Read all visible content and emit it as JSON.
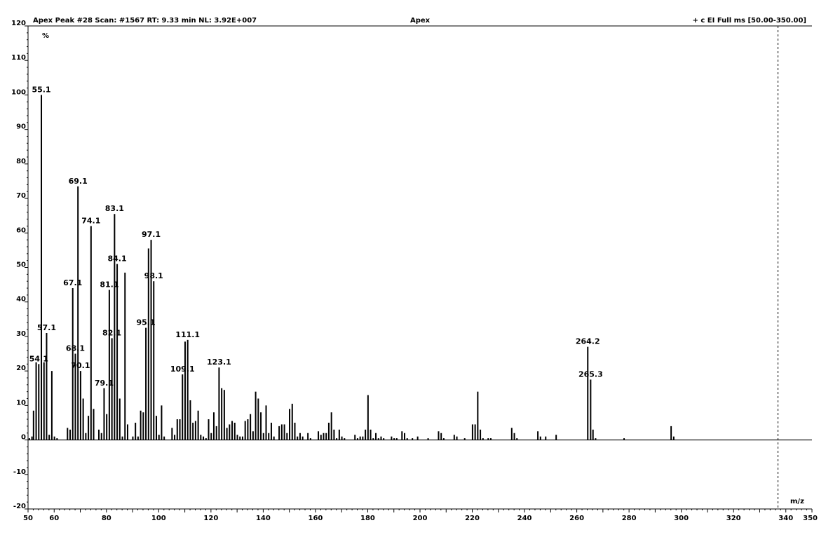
{
  "header": {
    "scan_info": "Apex Peak #28 Scan: #1567 RT: 9.33 min NL: 3.92E+007",
    "center_title": "Apex",
    "filter": "+ c EI Full ms [50.00-350.00]"
  },
  "chart_data": {
    "type": "bar",
    "xlabel": "m/z",
    "ylabel": "%",
    "xlim": [
      50,
      350
    ],
    "ylim": [
      -20,
      120
    ],
    "x_ticks": [
      50,
      60,
      80,
      100,
      120,
      140,
      160,
      180,
      200,
      220,
      240,
      260,
      280,
      300,
      320,
      340,
      350
    ],
    "y_ticks": [
      -20,
      -10,
      0,
      10,
      20,
      30,
      40,
      50,
      60,
      70,
      80,
      90,
      100,
      110,
      120
    ],
    "marker_x": 337,
    "peaks": [
      {
        "mz": 50.5,
        "intensity": 0.5
      },
      {
        "mz": 51.5,
        "intensity": 1
      },
      {
        "mz": 52.1,
        "intensity": 8.5
      },
      {
        "mz": 53.1,
        "intensity": 22.5
      },
      {
        "mz": 54.1,
        "intensity": 22
      },
      {
        "mz": 55.1,
        "intensity": 100
      },
      {
        "mz": 56.1,
        "intensity": 22.5
      },
      {
        "mz": 57.1,
        "intensity": 31
      },
      {
        "mz": 58.1,
        "intensity": 1.5
      },
      {
        "mz": 59.1,
        "intensity": 20
      },
      {
        "mz": 60.1,
        "intensity": 1
      },
      {
        "mz": 61.1,
        "intensity": 0.5
      },
      {
        "mz": 65.1,
        "intensity": 3.5
      },
      {
        "mz": 66.1,
        "intensity": 3
      },
      {
        "mz": 67.1,
        "intensity": 44
      },
      {
        "mz": 68.1,
        "intensity": 25
      },
      {
        "mz": 69.1,
        "intensity": 73.5
      },
      {
        "mz": 70.1,
        "intensity": 20
      },
      {
        "mz": 71.1,
        "intensity": 12
      },
      {
        "mz": 72.1,
        "intensity": 2
      },
      {
        "mz": 73.1,
        "intensity": 7
      },
      {
        "mz": 74.1,
        "intensity": 62
      },
      {
        "mz": 75.1,
        "intensity": 9
      },
      {
        "mz": 77.1,
        "intensity": 3
      },
      {
        "mz": 78.1,
        "intensity": 2
      },
      {
        "mz": 79.1,
        "intensity": 15
      },
      {
        "mz": 80.1,
        "intensity": 7.5
      },
      {
        "mz": 81.1,
        "intensity": 43.5
      },
      {
        "mz": 82.1,
        "intensity": 29.5
      },
      {
        "mz": 83.1,
        "intensity": 65.5
      },
      {
        "mz": 84.1,
        "intensity": 51
      },
      {
        "mz": 85.1,
        "intensity": 12
      },
      {
        "mz": 86.1,
        "intensity": 1
      },
      {
        "mz": 87.1,
        "intensity": 48.5
      },
      {
        "mz": 88.1,
        "intensity": 4.5
      },
      {
        "mz": 90.1,
        "intensity": 1
      },
      {
        "mz": 91.1,
        "intensity": 5
      },
      {
        "mz": 92.1,
        "intensity": 1
      },
      {
        "mz": 93.1,
        "intensity": 8.5
      },
      {
        "mz": 94.1,
        "intensity": 8
      },
      {
        "mz": 95.1,
        "intensity": 32.5
      },
      {
        "mz": 96.1,
        "intensity": 55.5
      },
      {
        "mz": 97.1,
        "intensity": 58
      },
      {
        "mz": 98.1,
        "intensity": 46
      },
      {
        "mz": 99.1,
        "intensity": 7
      },
      {
        "mz": 100.1,
        "intensity": 1.5
      },
      {
        "mz": 101.1,
        "intensity": 10
      },
      {
        "mz": 102.1,
        "intensity": 1
      },
      {
        "mz": 105.1,
        "intensity": 3.5
      },
      {
        "mz": 106.1,
        "intensity": 1.5
      },
      {
        "mz": 107.1,
        "intensity": 6
      },
      {
        "mz": 108.1,
        "intensity": 6
      },
      {
        "mz": 109.1,
        "intensity": 19
      },
      {
        "mz": 110.1,
        "intensity": 28.5
      },
      {
        "mz": 111.1,
        "intensity": 29
      },
      {
        "mz": 112.1,
        "intensity": 11.5
      },
      {
        "mz": 113.1,
        "intensity": 5
      },
      {
        "mz": 114.1,
        "intensity": 5.5
      },
      {
        "mz": 115.1,
        "intensity": 8.5
      },
      {
        "mz": 116.1,
        "intensity": 1.5
      },
      {
        "mz": 117.1,
        "intensity": 1
      },
      {
        "mz": 118.1,
        "intensity": 0.5
      },
      {
        "mz": 119.1,
        "intensity": 6
      },
      {
        "mz": 120.1,
        "intensity": 2
      },
      {
        "mz": 121.1,
        "intensity": 8
      },
      {
        "mz": 122.1,
        "intensity": 4
      },
      {
        "mz": 123.1,
        "intensity": 21
      },
      {
        "mz": 124.1,
        "intensity": 15
      },
      {
        "mz": 125.1,
        "intensity": 14.5
      },
      {
        "mz": 126.1,
        "intensity": 3.5
      },
      {
        "mz": 127.1,
        "intensity": 4.5
      },
      {
        "mz": 128.1,
        "intensity": 5.5
      },
      {
        "mz": 129.1,
        "intensity": 5
      },
      {
        "mz": 130.1,
        "intensity": 1.5
      },
      {
        "mz": 131.1,
        "intensity": 1
      },
      {
        "mz": 132.1,
        "intensity": 1
      },
      {
        "mz": 133.1,
        "intensity": 5.5
      },
      {
        "mz": 134.1,
        "intensity": 6
      },
      {
        "mz": 135.1,
        "intensity": 7.5
      },
      {
        "mz": 136.1,
        "intensity": 2.5
      },
      {
        "mz": 137.1,
        "intensity": 14
      },
      {
        "mz": 138.1,
        "intensity": 12
      },
      {
        "mz": 139.1,
        "intensity": 8
      },
      {
        "mz": 140.1,
        "intensity": 2
      },
      {
        "mz": 141.1,
        "intensity": 10
      },
      {
        "mz": 142.1,
        "intensity": 2
      },
      {
        "mz": 143.1,
        "intensity": 5
      },
      {
        "mz": 144.1,
        "intensity": 1
      },
      {
        "mz": 146.1,
        "intensity": 4
      },
      {
        "mz": 147.1,
        "intensity": 4.5
      },
      {
        "mz": 148.1,
        "intensity": 4.5
      },
      {
        "mz": 149.1,
        "intensity": 2
      },
      {
        "mz": 150.1,
        "intensity": 9
      },
      {
        "mz": 151.1,
        "intensity": 10.5
      },
      {
        "mz": 152.1,
        "intensity": 5
      },
      {
        "mz": 153.1,
        "intensity": 1
      },
      {
        "mz": 154.1,
        "intensity": 2
      },
      {
        "mz": 155.1,
        "intensity": 1
      },
      {
        "mz": 157.1,
        "intensity": 2
      },
      {
        "mz": 158.1,
        "intensity": 0.5
      },
      {
        "mz": 161.1,
        "intensity": 2.5
      },
      {
        "mz": 162.1,
        "intensity": 1.5
      },
      {
        "mz": 163.1,
        "intensity": 2
      },
      {
        "mz": 164.1,
        "intensity": 2
      },
      {
        "mz": 165.1,
        "intensity": 5
      },
      {
        "mz": 166.1,
        "intensity": 8
      },
      {
        "mz": 167.1,
        "intensity": 3
      },
      {
        "mz": 168.1,
        "intensity": 0.5
      },
      {
        "mz": 169.1,
        "intensity": 3
      },
      {
        "mz": 170.1,
        "intensity": 1
      },
      {
        "mz": 171.1,
        "intensity": 0.5
      },
      {
        "mz": 175.1,
        "intensity": 1.5
      },
      {
        "mz": 176.1,
        "intensity": 0.5
      },
      {
        "mz": 177.1,
        "intensity": 1
      },
      {
        "mz": 178.1,
        "intensity": 1
      },
      {
        "mz": 179.1,
        "intensity": 3
      },
      {
        "mz": 180.1,
        "intensity": 13
      },
      {
        "mz": 181.1,
        "intensity": 3
      },
      {
        "mz": 182.1,
        "intensity": 0.5
      },
      {
        "mz": 183.1,
        "intensity": 2
      },
      {
        "mz": 184.1,
        "intensity": 0.5
      },
      {
        "mz": 185.1,
        "intensity": 1
      },
      {
        "mz": 186.1,
        "intensity": 0.5
      },
      {
        "mz": 189.1,
        "intensity": 1
      },
      {
        "mz": 190.1,
        "intensity": 0.5
      },
      {
        "mz": 191.1,
        "intensity": 0.5
      },
      {
        "mz": 193.1,
        "intensity": 2.5
      },
      {
        "mz": 194.1,
        "intensity": 2
      },
      {
        "mz": 195.1,
        "intensity": 0.5
      },
      {
        "mz": 197.1,
        "intensity": 0.5
      },
      {
        "mz": 199.1,
        "intensity": 1
      },
      {
        "mz": 203.1,
        "intensity": 0.5
      },
      {
        "mz": 207.1,
        "intensity": 2.5
      },
      {
        "mz": 208.1,
        "intensity": 2
      },
      {
        "mz": 209.1,
        "intensity": 0.5
      },
      {
        "mz": 213.1,
        "intensity": 1.5
      },
      {
        "mz": 214.1,
        "intensity": 1
      },
      {
        "mz": 217.1,
        "intensity": 0.5
      },
      {
        "mz": 220.1,
        "intensity": 4.5
      },
      {
        "mz": 221.1,
        "intensity": 4.5
      },
      {
        "mz": 222.1,
        "intensity": 14
      },
      {
        "mz": 223.1,
        "intensity": 3
      },
      {
        "mz": 224.1,
        "intensity": 0.5
      },
      {
        "mz": 226.1,
        "intensity": 0.5
      },
      {
        "mz": 227.1,
        "intensity": 0.5
      },
      {
        "mz": 235.1,
        "intensity": 3.5
      },
      {
        "mz": 236.1,
        "intensity": 2
      },
      {
        "mz": 237.1,
        "intensity": 0.5
      },
      {
        "mz": 245.1,
        "intensity": 2.5
      },
      {
        "mz": 246.1,
        "intensity": 1
      },
      {
        "mz": 248.1,
        "intensity": 1
      },
      {
        "mz": 252.1,
        "intensity": 1.5
      },
      {
        "mz": 264.2,
        "intensity": 27
      },
      {
        "mz": 265.3,
        "intensity": 17.5
      },
      {
        "mz": 266.2,
        "intensity": 3
      },
      {
        "mz": 267.2,
        "intensity": 0.5
      },
      {
        "mz": 278.1,
        "intensity": 0.5
      },
      {
        "mz": 296.1,
        "intensity": 4
      },
      {
        "mz": 297.1,
        "intensity": 1
      }
    ],
    "peak_labels": [
      {
        "mz": 54.1,
        "text": "54.1"
      },
      {
        "mz": 55.1,
        "text": "55.1"
      },
      {
        "mz": 57.1,
        "text": "57.1"
      },
      {
        "mz": 67.1,
        "text": "67.1"
      },
      {
        "mz": 68.1,
        "text": "68.1"
      },
      {
        "mz": 69.1,
        "text": "69.1"
      },
      {
        "mz": 70.1,
        "text": "70.1"
      },
      {
        "mz": 74.1,
        "text": "74.1"
      },
      {
        "mz": 79.1,
        "text": "79.1"
      },
      {
        "mz": 81.1,
        "text": "81.1"
      },
      {
        "mz": 82.1,
        "text": "82.1"
      },
      {
        "mz": 83.1,
        "text": "83.1"
      },
      {
        "mz": 84.1,
        "text": "84.1"
      },
      {
        "mz": 95.1,
        "text": "95.1"
      },
      {
        "mz": 97.1,
        "text": "97.1"
      },
      {
        "mz": 98.1,
        "text": "98.1"
      },
      {
        "mz": 109.1,
        "text": "109.1"
      },
      {
        "mz": 111.1,
        "text": "111.1"
      },
      {
        "mz": 123.1,
        "text": "123.1"
      },
      {
        "mz": 264.2,
        "text": "264.2"
      },
      {
        "mz": 265.3,
        "text": "265.3"
      }
    ]
  }
}
